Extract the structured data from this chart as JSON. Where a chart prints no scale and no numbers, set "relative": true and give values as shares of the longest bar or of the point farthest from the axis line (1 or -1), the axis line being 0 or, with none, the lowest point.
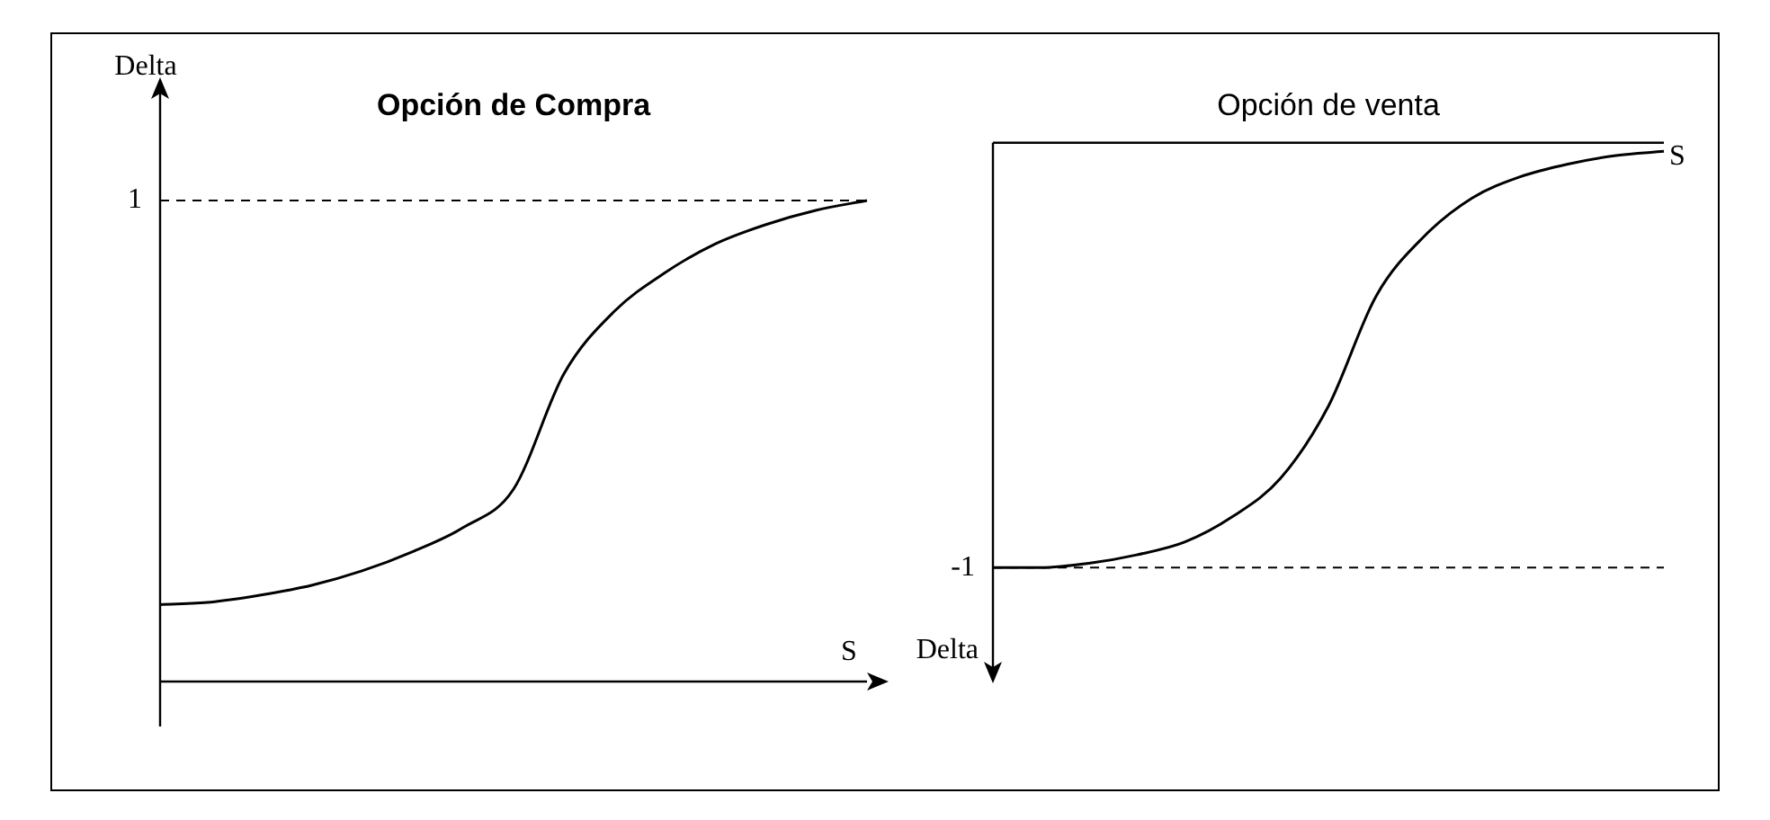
{
  "chart_data": [
    {
      "type": "line",
      "title": "Opción de Compra",
      "ylabel": "Delta",
      "xlabel": "S",
      "relative": true,
      "categories": [
        null,
        null,
        null,
        null,
        null,
        null,
        null,
        null,
        null,
        null,
        null,
        null,
        null,
        null,
        null
      ],
      "series": [
        {
          "color": "#000000",
          "values": [
            0.16,
            0.165,
            0.18,
            0.2,
            0.23,
            0.27,
            0.32,
            0.4,
            0.64,
            0.77,
            0.85,
            0.91,
            0.95,
            0.98,
            1.0
          ]
        }
      ],
      "ref_lines": [
        {
          "axis": "y",
          "value": 1,
          "label": "1",
          "line_style": "dashed"
        }
      ],
      "marker": "none",
      "legend": false
    },
    {
      "type": "line",
      "title": "Opción de venta",
      "ylabel": "Delta",
      "xlabel": "S",
      "relative": true,
      "categories": [
        null,
        null,
        null,
        null,
        null,
        null,
        null,
        null,
        null,
        null,
        null,
        null,
        null,
        null,
        null
      ],
      "series": [
        {
          "color": "#000000",
          "values": [
            -1.0,
            -1.0,
            -0.99,
            -0.97,
            -0.94,
            -0.88,
            -0.79,
            -0.62,
            -0.36,
            -0.22,
            -0.13,
            -0.08,
            -0.05,
            -0.03,
            -0.02
          ]
        }
      ],
      "ref_lines": [
        {
          "axis": "y",
          "value": -1,
          "label": "-1",
          "line_style": "dashed"
        }
      ],
      "marker": "none",
      "legend": false
    }
  ]
}
